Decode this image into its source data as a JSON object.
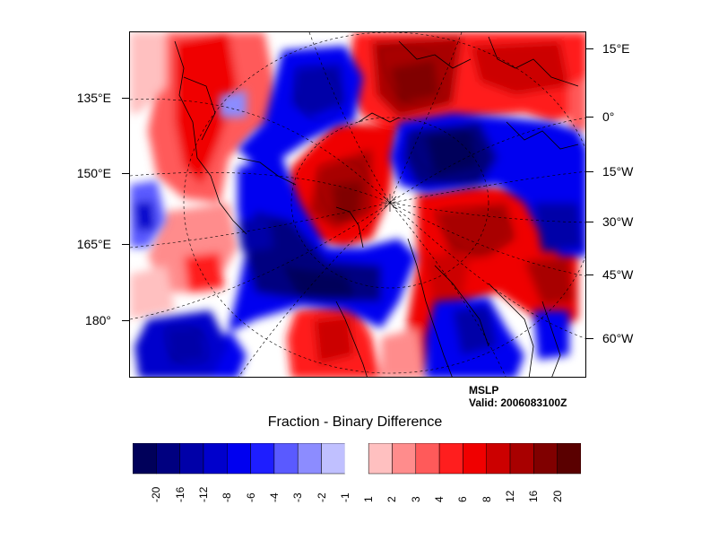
{
  "map": {
    "right_labels": [
      "15°E",
      "0°",
      "15°W",
      "30°W",
      "45°W",
      "60°W"
    ],
    "left_labels": [
      "135°E",
      "150°E",
      "165°E",
      "180°"
    ],
    "info_title": "MSLP",
    "info_valid": "Valid: 2006083100Z"
  },
  "colorbar": {
    "title": "Fraction - Binary Difference",
    "levels": [
      "-20",
      "-16",
      "-12",
      "-8",
      "-6",
      "-4",
      "-3",
      "-2",
      "-1",
      "1",
      "2",
      "3",
      "4",
      "6",
      "8",
      "12",
      "16",
      "20"
    ],
    "colors": [
      "#00005a",
      "#000080",
      "#0000a8",
      "#0000cc",
      "#0000f0",
      "#1e1eff",
      "#5a5aff",
      "#8c8cff",
      "#c0c0ff",
      "#ffffff",
      "#ffc0c0",
      "#ff8c8c",
      "#ff5a5a",
      "#ff1e1e",
      "#f00000",
      "#cc0000",
      "#a80000",
      "#800000",
      "#5a0000"
    ]
  }
}
